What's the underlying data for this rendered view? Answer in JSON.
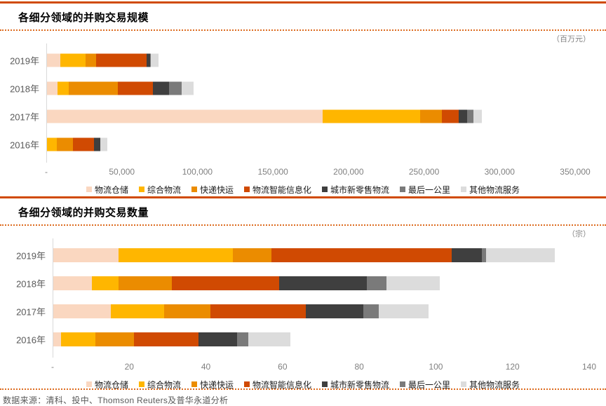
{
  "footer": {
    "source_text": "数据来源：清科、投中、Thomson Reuters及普华永道分析"
  },
  "colors": {
    "accent_rule": "#D04A02",
    "axis_line": "#D9D9D9",
    "tick_text": "#808080",
    "year_text": "#595959"
  },
  "chart_data": [
    {
      "type": "bar",
      "orientation": "horizontal",
      "stacked": true,
      "title": "各细分领域的并购交易规模",
      "unit": "（百万元）",
      "grid": false,
      "legend_position": "bottom",
      "categories": [
        "2019年",
        "2018年",
        "2017年",
        "2016年"
      ],
      "xlim": [
        0,
        350000
      ],
      "xticks": [
        "-",
        "50,000",
        "100,000",
        "150,000",
        "200,000",
        "250,000",
        "300,000",
        "350,000"
      ],
      "series": [
        {
          "name": "物流仓储",
          "color": "#FAD7C0",
          "values": [
            9000,
            7000,
            182500,
            0
          ]
        },
        {
          "name": "综合物流",
          "color": "#FFB600",
          "values": [
            16500,
            7500,
            65000,
            6500
          ]
        },
        {
          "name": "快递快运",
          "color": "#EB8C00",
          "values": [
            7000,
            32500,
            14000,
            10500
          ]
        },
        {
          "name": "物流智能信息化",
          "color": "#D04A02",
          "values": [
            33500,
            23000,
            11500,
            14000
          ]
        },
        {
          "name": "城市新零售物流",
          "color": "#3F3F3F",
          "values": [
            2500,
            11000,
            5500,
            4300
          ]
        },
        {
          "name": "最后一公里",
          "color": "#7A7A7A",
          "values": [
            500,
            8500,
            4000,
            0
          ]
        },
        {
          "name": "其他物流服务",
          "color": "#DCDCDC",
          "values": [
            5000,
            7500,
            5500,
            4700
          ]
        }
      ]
    },
    {
      "type": "bar",
      "orientation": "horizontal",
      "stacked": true,
      "title": "各细分领域的并购交易数量",
      "unit": "（宗）",
      "grid": false,
      "legend_position": "bottom",
      "categories": [
        "2019年",
        "2018年",
        "2017年",
        "2016年"
      ],
      "xlim": [
        0,
        140
      ],
      "xticks": [
        "-",
        "20",
        "40",
        "60",
        "80",
        "100",
        "120",
        "140"
      ],
      "series": [
        {
          "name": "物流仓储",
          "color": "#FAD7C0",
          "values": [
            17,
            10,
            15,
            2
          ]
        },
        {
          "name": "综合物流",
          "color": "#FFB600",
          "values": [
            30,
            7,
            14,
            9
          ]
        },
        {
          "name": "快递快运",
          "color": "#EB8C00",
          "values": [
            10,
            14,
            12,
            10
          ]
        },
        {
          "name": "物流智能信息化",
          "color": "#D04A02",
          "values": [
            47,
            28,
            25,
            17
          ]
        },
        {
          "name": "城市新零售物流",
          "color": "#3F3F3F",
          "values": [
            8,
            23,
            15,
            10
          ]
        },
        {
          "name": "最后一公里",
          "color": "#7A7A7A",
          "values": [
            1,
            5,
            4,
            3
          ]
        },
        {
          "name": "其他物流服务",
          "color": "#DCDCDC",
          "values": [
            18,
            14,
            13,
            11
          ]
        }
      ]
    }
  ]
}
